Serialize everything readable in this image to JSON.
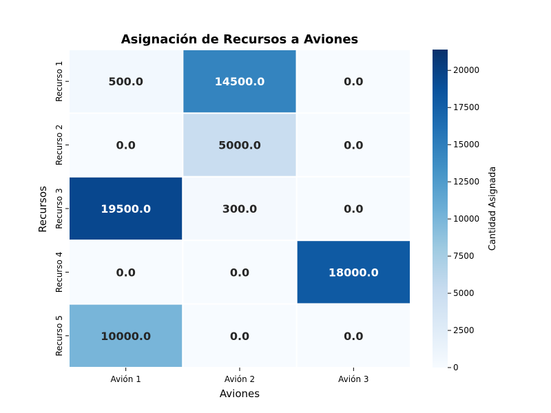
{
  "chart_data": {
    "type": "heatmap",
    "title": "Asignación de Recursos a Aviones",
    "xlabel": "Aviones",
    "ylabel": "Recursos",
    "x_categories": [
      "Avión 1",
      "Avión 2",
      "Avión 3"
    ],
    "y_categories": [
      "Recurso 1",
      "Recurso 2",
      "Recurso 3",
      "Recurso 4",
      "Recurso 5"
    ],
    "values": [
      [
        500.0,
        14500.0,
        0.0
      ],
      [
        0.0,
        5000.0,
        0.0
      ],
      [
        19500.0,
        300.0,
        0.0
      ],
      [
        0.0,
        0.0,
        18000.0
      ],
      [
        10000.0,
        0.0,
        0.0
      ]
    ],
    "cell_labels": [
      [
        "500.0",
        "14500.0",
        "0.0"
      ],
      [
        "0.0",
        "5000.0",
        "0.0"
      ],
      [
        "19500.0",
        "300.0",
        "0.0"
      ],
      [
        "0.0",
        "0.0",
        "18000.0"
      ],
      [
        "10000.0",
        "0.0",
        "0.0"
      ]
    ],
    "colormap": "Blues",
    "colorbar": {
      "label": "Cantidad Asignada",
      "range": [
        0,
        21400
      ],
      "ticks": [
        0,
        2500,
        5000,
        7500,
        10000,
        12500,
        15000,
        17500,
        20000
      ],
      "tick_labels": [
        "0",
        "2500",
        "5000",
        "7500",
        "10000",
        "12500",
        "15000",
        "17500",
        "20000"
      ]
    },
    "grid": false
  }
}
